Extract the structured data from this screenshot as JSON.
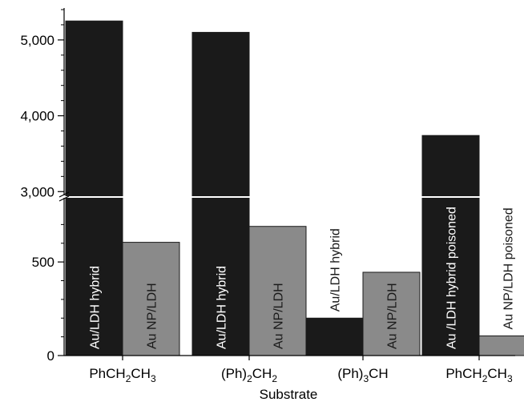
{
  "chart_data": {
    "type": "bar",
    "xlabel": "Substrate",
    "ylabel": "",
    "broken_axis": true,
    "lower_ylim": [
      0,
      800
    ],
    "upper_ylim": [
      2950,
      5400
    ],
    "lower_yticks": [
      {
        "value": 0,
        "label": "0"
      },
      {
        "value": 500,
        "label": "500"
      }
    ],
    "upper_yticks": [
      {
        "value": 3000,
        "label": "3,000"
      },
      {
        "value": 4000,
        "label": "4,000"
      },
      {
        "value": 5000,
        "label": "5,000"
      }
    ],
    "categories": [
      {
        "base": "PhCH",
        "sub1": "2",
        "mid": "CH",
        "sub2": "3",
        "tail": ""
      },
      {
        "base": "(Ph)",
        "sub1": "2",
        "mid": "CH",
        "sub2": "2",
        "tail": ""
      },
      {
        "base": "(Ph)",
        "sub1": "3",
        "mid": "CH",
        "sub2": "",
        "tail": ""
      },
      {
        "base": "PhCH",
        "sub1": "2",
        "mid": "CH",
        "sub2": "3",
        "tail": ""
      }
    ],
    "bars": [
      {
        "category": 0,
        "value": 5250,
        "label": "Au/LDH hybrid",
        "color": "#1a1a1a",
        "label_color": "#ffffff"
      },
      {
        "category": 0,
        "value": 605,
        "label": "Au NP/LDH",
        "color": "#8a8a8a",
        "label_color": "#1a1a1a"
      },
      {
        "category": 1,
        "value": 5100,
        "label": "Au/LDH hybrid",
        "color": "#1a1a1a",
        "label_color": "#ffffff"
      },
      {
        "category": 1,
        "value": 690,
        "label": "Au NP/LDH",
        "color": "#8a8a8a",
        "label_color": "#1a1a1a"
      },
      {
        "category": 2,
        "value": 200,
        "label": "Au/LDH hybrid",
        "color": "#1a1a1a",
        "label_color": "#1a1a1a"
      },
      {
        "category": 2,
        "value": 445,
        "label": "Au NP/LDH",
        "color": "#8a8a8a",
        "label_color": "#1a1a1a"
      },
      {
        "category": 3,
        "value": 3740,
        "label": "Au /LDH hybrid poisoned",
        "color": "#1a1a1a",
        "label_color": "#ffffff"
      },
      {
        "category": 3,
        "value": 105,
        "label": "Au NP/LDH poisoned",
        "color": "#8a8a8a",
        "label_color": "#1a1a1a"
      }
    ]
  }
}
